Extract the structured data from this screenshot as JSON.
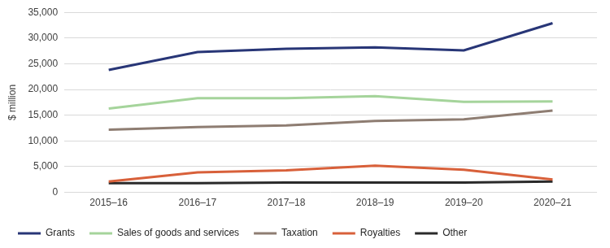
{
  "chart_data": {
    "type": "line",
    "y_label": "$ million",
    "categories": [
      "2015–16",
      "2016–17",
      "2017–18",
      "2018–19",
      "2019–20",
      "2020–21"
    ],
    "series": [
      {
        "name": "Grants",
        "color": "#283677",
        "values": [
          23800,
          27300,
          27900,
          28200,
          27600,
          32900
        ]
      },
      {
        "name": "Sales of goods and services",
        "color": "#A5D49B",
        "values": [
          16300,
          18300,
          18300,
          18700,
          17600,
          17700
        ]
      },
      {
        "name": "Taxation",
        "color": "#8E7D72",
        "values": [
          12200,
          12700,
          13000,
          13900,
          14200,
          15900
        ]
      },
      {
        "name": "Royalties",
        "color": "#D8603A",
        "values": [
          2100,
          3900,
          4300,
          5200,
          4400,
          2500
        ]
      },
      {
        "name": "Other",
        "color": "#2A2A2A",
        "values": [
          1800,
          1800,
          1900,
          1900,
          1900,
          2100
        ]
      }
    ],
    "ylim": [
      0,
      35000
    ],
    "yticks": [
      0,
      {
        "value": 5000,
        "label": "5,000"
      },
      {
        "value": 10000,
        "label": "10,000"
      },
      {
        "value": 15000,
        "label": "15,000"
      },
      {
        "value": 20000,
        "label": "20,000"
      },
      {
        "value": 25000,
        "label": "25,000"
      },
      {
        "value": 30000,
        "label": "30,000"
      },
      {
        "value": 35000,
        "label": "35,000"
      }
    ],
    "grid": true,
    "legend": "bottom"
  }
}
